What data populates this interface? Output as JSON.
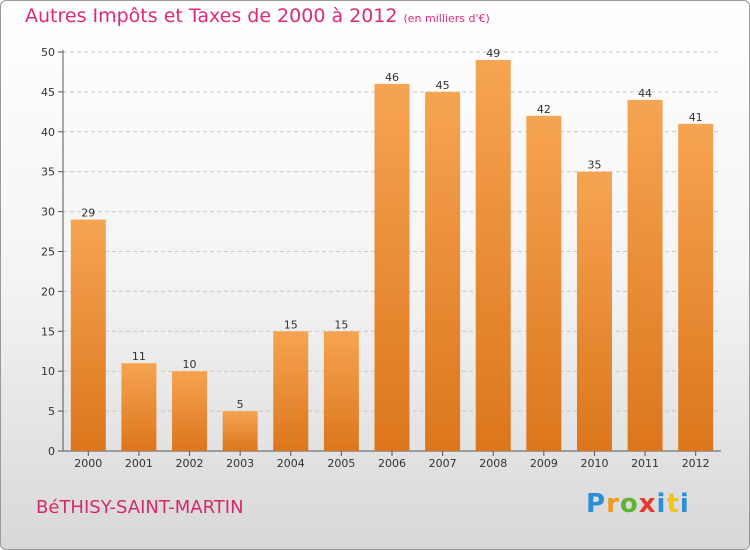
{
  "title": "Autres Impôts et Taxes de 2000 à 2012",
  "unit_note": "(en milliers d'€)",
  "commune": "BéTHISY-SAINT-MARTIN",
  "logo": {
    "text": "Proxiti",
    "letters": [
      "P",
      "r",
      "o",
      "x",
      "i",
      "t",
      "i"
    ]
  },
  "chart_data": {
    "type": "bar",
    "categories": [
      "2000",
      "2001",
      "2002",
      "2003",
      "2004",
      "2005",
      "2006",
      "2007",
      "2008",
      "2009",
      "2010",
      "2011",
      "2012"
    ],
    "values": [
      29,
      11,
      10,
      5,
      15,
      15,
      46,
      45,
      49,
      42,
      35,
      44,
      41
    ],
    "ylim": [
      0,
      50
    ],
    "yticks": [
      0,
      5,
      10,
      15,
      20,
      25,
      30,
      35,
      40,
      45,
      50
    ],
    "grid": true,
    "bar_color": "#f0902e"
  }
}
